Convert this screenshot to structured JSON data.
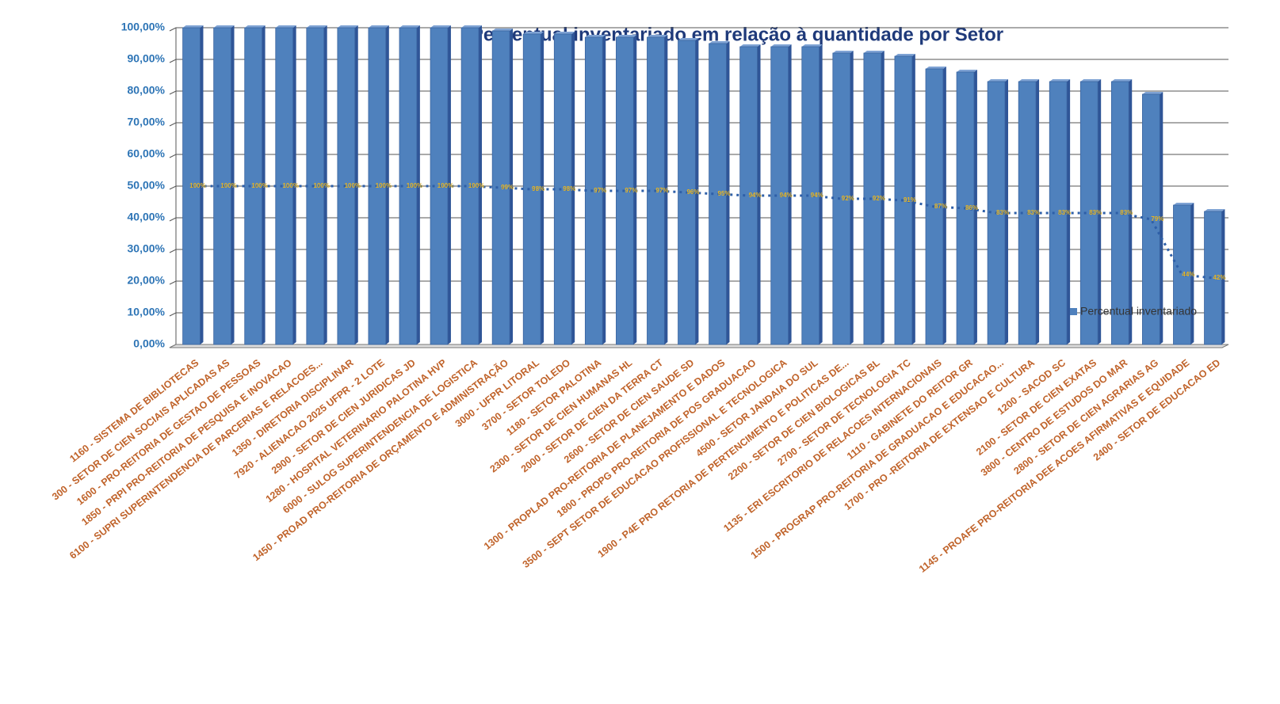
{
  "chart_data": {
    "type": "bar",
    "title": "Percentual inventariado em relação à quantidade por Setor",
    "categories": [
      "1160 - SISTEMA DE BIBLIOTECAS",
      "300 - SETOR DE CIEN SOCIAIS APLICADAS AS",
      "1600 - PRO-REITORIA DE GESTAO DE PESSOAS",
      "1850 - PRPI PRO-REITORIA DE PESQUISA E INOVACAO",
      "6100 - SUPRI SUPERINTENDENCIA DE PARCERIAS E RELACOES...",
      "1350 - DIRETORIA DISCIPLINAR",
      "7920 - ALIENACAO 2025 UFPR - 2 LOTE",
      "2900 - SETOR DE CIEN JURIDICAS JD",
      "1280 - HOSPITAL VETERINARIO PALOTINA HVP",
      "6000 - SULOG SUPERINTENDENCIA DE LOGISTICA",
      "1450 - PROAD PRO-REITORIA DE ORÇAMENTO E ADMINISTRAÇÃO",
      "3000 - UFPR LITORAL",
      "3700 - SETOR TOLEDO",
      "1180 - SETOR PALOTINA",
      "2300 - SETOR DE CIEN HUMANAS HL",
      "2000 - SETOR DE CIEN DA TERRA CT",
      "2600 - SETOR DE CIEN SAUDE SD",
      "1300 - PROPLAD PRO-REITORIA DE PLANEJAMENTO E DADOS",
      "1800 - PROPG PRO-REITORIA DE POS GRADUACAO",
      "3500 - SEPT SETOR DE EDUCACAO PROFISSIONAL E TECNOLOGICA",
      "4500 - SETOR JANDAIA DO SUL",
      "1900 - P4E PRO RETORIA DE PERTENCIMENTO E POLITICAS DE...",
      "2200 - SETOR DE CIEN BIOLOGICAS BL",
      "2700 - SETOR DE TECNOLOGIA TC",
      "1135 - ERI ESCRITORIO DE RELACOES INTERNACIONAIS",
      "1110 - GABINETE DO REITOR GR",
      "1500 - PROGRAP PRO-REITORIA DE GRADUACAO E EDUCACAO...",
      "1700 - PRO -REITORIA DE EXTENSAO E CULTURA",
      "1200 - SACOD SC",
      "2100 - SETOR DE CIEN EXATAS",
      "3800 - CENTRO DE ESTUDOS DO MAR",
      "2800 - SETOR DE CIEN AGRARIAS AG",
      "1145 - PROAFE PRO-REITORIA DEE ACOES AFIRMATIVAS E EQUIDADE",
      "2400 - SETOR DE EDUCACAO ED"
    ],
    "series": [
      {
        "name": "Percentual inventariado",
        "color": "#4f81bd",
        "values": [
          100,
          100,
          100,
          100,
          100,
          100,
          100,
          100,
          100,
          100,
          99,
          98,
          98,
          97,
          97,
          97,
          96,
          95,
          94,
          94,
          94,
          92,
          92,
          91,
          87,
          86,
          83,
          83,
          83,
          83,
          83,
          79,
          44,
          42
        ],
        "value_labels": [
          "100%",
          "100%",
          "100%",
          "100%",
          "100%",
          "100%",
          "100%",
          "100%",
          "100%",
          "100%",
          "99%",
          "98%",
          "98%",
          "97%",
          "97%",
          "97%",
          "96%",
          "95%",
          "94%",
          "94%",
          "94%",
          "92%",
          "92%",
          "91%",
          "87%",
          "86%",
          "83%",
          "83%",
          "83%",
          "83%",
          "83%",
          "79%",
          "44%",
          "42%"
        ]
      }
    ],
    "ylim": [
      0,
      100
    ],
    "yticks": [
      {
        "value": 0,
        "label": "0,00%"
      },
      {
        "value": 10,
        "label": "10,00%"
      },
      {
        "value": 20,
        "label": "20,00%"
      },
      {
        "value": 30,
        "label": "30,00%"
      },
      {
        "value": 40,
        "label": "40,00%"
      },
      {
        "value": 50,
        "label": "50,00%"
      },
      {
        "value": 60,
        "label": "60,00%"
      },
      {
        "value": 70,
        "label": "70,00%"
      },
      {
        "value": 80,
        "label": "80,00%"
      },
      {
        "value": 90,
        "label": "90,00%"
      },
      {
        "value": 100,
        "label": "100,00%"
      }
    ],
    "grid": true,
    "legend": "right"
  }
}
